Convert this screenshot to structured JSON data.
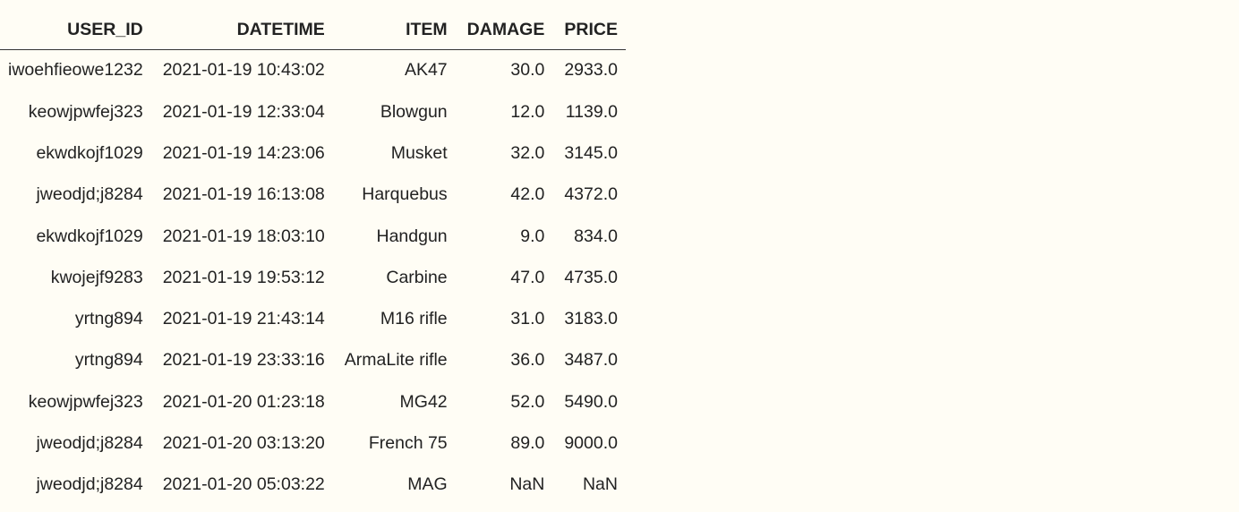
{
  "table": {
    "columns": [
      "USER_ID",
      "DATETIME",
      "ITEM",
      "DAMAGE",
      "PRICE"
    ],
    "rows": [
      [
        "iwoehfieowe1232",
        "2021-01-19 10:43:02",
        "AK47",
        "30.0",
        "2933.0"
      ],
      [
        "keowjpwfej323",
        "2021-01-19 12:33:04",
        "Blowgun",
        "12.0",
        "1139.0"
      ],
      [
        "ekwdkojf1029",
        "2021-01-19 14:23:06",
        "Musket",
        "32.0",
        "3145.0"
      ],
      [
        "jweodjd;j8284",
        "2021-01-19 16:13:08",
        "Harquebus",
        "42.0",
        "4372.0"
      ],
      [
        "ekwdkojf1029",
        "2021-01-19 18:03:10",
        "Handgun",
        "9.0",
        "834.0"
      ],
      [
        "kwojejf9283",
        "2021-01-19 19:53:12",
        "Carbine",
        "47.0",
        "4735.0"
      ],
      [
        "yrtng894",
        "2021-01-19 21:43:14",
        "M16 rifle",
        "31.0",
        "3183.0"
      ],
      [
        "yrtng894",
        "2021-01-19 23:33:16",
        "ArmaLite rifle",
        "36.0",
        "3487.0"
      ],
      [
        "keowjpwfej323",
        "2021-01-20 01:23:18",
        "MG42",
        "52.0",
        "5490.0"
      ],
      [
        "jweodjd;j8284",
        "2021-01-20 03:13:20",
        "French 75",
        "89.0",
        "9000.0"
      ],
      [
        "jweodjd;j8284",
        "2021-01-20 05:03:22",
        "MAG",
        "NaN",
        "NaN"
      ]
    ]
  },
  "colors": {
    "background": "#fffdf5",
    "text": "#222222",
    "rule": "#333333"
  }
}
